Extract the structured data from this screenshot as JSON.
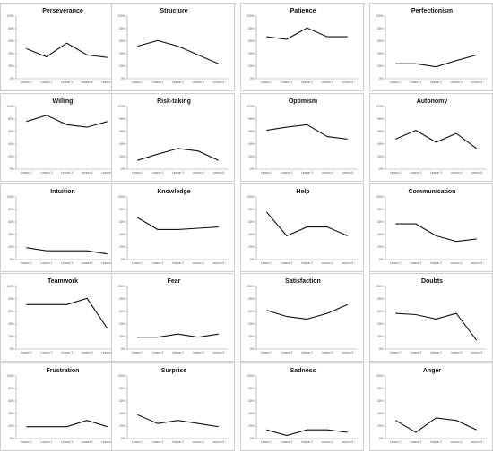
{
  "chart_data": [
    {
      "type": "line",
      "title": "Perseverance",
      "categories": [
        "Lesson 1",
        "Lesson 2",
        "Lesson 3",
        "Lesson 4",
        "Lesson 5"
      ],
      "values": [
        48,
        35,
        57,
        38,
        34
      ],
      "ylim": [
        0,
        100
      ],
      "yticks": [
        "100%",
        "80%",
        "60%",
        "40%",
        "20%",
        "0%"
      ],
      "grid": false
    },
    {
      "type": "line",
      "title": "Structure",
      "categories": [
        "Lesson 1",
        "Lesson 2",
        "Lesson 3",
        "Lesson 4",
        "Lesson 5"
      ],
      "values": [
        52,
        61,
        52,
        38,
        24
      ],
      "ylim": [
        0,
        100
      ],
      "yticks": [
        "100%",
        "80%",
        "60%",
        "40%",
        "20%",
        "0%"
      ],
      "grid": false
    },
    {
      "type": "line",
      "title": "Patience",
      "categories": [
        "Lesson 1",
        "Lesson 2",
        "Lesson 3",
        "Lesson 4",
        "Lesson 5"
      ],
      "values": [
        67,
        63,
        81,
        67,
        67
      ],
      "ylim": [
        0,
        100
      ],
      "yticks": [
        "100%",
        "80%",
        "60%",
        "40%",
        "20%",
        "0%"
      ],
      "grid": false
    },
    {
      "type": "line",
      "title": "Perfectionism",
      "categories": [
        "Lesson 1",
        "Lesson 2",
        "Lesson 3",
        "Lesson 4",
        "Lesson 5"
      ],
      "values": [
        24,
        24,
        19,
        29,
        38
      ],
      "ylim": [
        0,
        100
      ],
      "yticks": [
        "100%",
        "80%",
        "60%",
        "40%",
        "20%",
        "0%"
      ],
      "grid": false
    },
    {
      "type": "line",
      "title": "Willing",
      "categories": [
        "Lesson 1",
        "Lesson 2",
        "Lesson 3",
        "Lesson 4",
        "Lesson 5"
      ],
      "values": [
        76,
        86,
        71,
        67,
        76
      ],
      "ylim": [
        0,
        100
      ],
      "yticks": [
        "100%",
        "80%",
        "60%",
        "40%",
        "20%",
        "0%"
      ],
      "grid": false
    },
    {
      "type": "line",
      "title": "Risk-taking",
      "categories": [
        "Lesson 1",
        "Lesson 2",
        "Lesson 3",
        "Lesson 4",
        "Lesson 5"
      ],
      "values": [
        14,
        24,
        33,
        29,
        14
      ],
      "ylim": [
        0,
        100
      ],
      "yticks": [
        "100%",
        "80%",
        "60%",
        "40%",
        "20%",
        "0%"
      ],
      "grid": false
    },
    {
      "type": "line",
      "title": "Optimism",
      "categories": [
        "Lesson 1",
        "Lesson 2",
        "Lesson 3",
        "Lesson 4",
        "Lesson 5"
      ],
      "values": [
        62,
        67,
        71,
        52,
        48
      ],
      "ylim": [
        0,
        100
      ],
      "yticks": [
        "100%",
        "80%",
        "60%",
        "40%",
        "20%",
        "0%"
      ],
      "grid": false
    },
    {
      "type": "line",
      "title": "Autonomy",
      "categories": [
        "Lesson 1",
        "Lesson 2",
        "Lesson 3",
        "Lesson 4",
        "Lesson 5"
      ],
      "values": [
        48,
        62,
        43,
        57,
        33
      ],
      "ylim": [
        0,
        100
      ],
      "yticks": [
        "100%",
        "80%",
        "60%",
        "40%",
        "20%",
        "0%"
      ],
      "grid": false
    },
    {
      "type": "line",
      "title": "Intuition",
      "categories": [
        "Lesson 1",
        "Lesson 2",
        "Lesson 3",
        "Lesson 4",
        "Lesson 5"
      ],
      "values": [
        19,
        14,
        14,
        14,
        9
      ],
      "ylim": [
        0,
        100
      ],
      "yticks": [
        "100%",
        "80%",
        "60%",
        "40%",
        "20%",
        "0%"
      ],
      "grid": false
    },
    {
      "type": "line",
      "title": "Knowledge",
      "categories": [
        "Lesson 1",
        "Lesson 2",
        "Lesson 3",
        "Lesson 4",
        "Lesson 5"
      ],
      "values": [
        67,
        48,
        48,
        50,
        52
      ],
      "ylim": [
        0,
        100
      ],
      "yticks": [
        "100%",
        "80%",
        "60%",
        "40%",
        "20%",
        "0%"
      ],
      "grid": false
    },
    {
      "type": "line",
      "title": "Help",
      "categories": [
        "Lesson 1",
        "Lesson 2",
        "Lesson 3",
        "Lesson 4",
        "Lesson 5"
      ],
      "values": [
        76,
        38,
        52,
        52,
        38
      ],
      "ylim": [
        0,
        100
      ],
      "yticks": [
        "100%",
        "80%",
        "60%",
        "40%",
        "20%",
        "0%"
      ],
      "grid": false
    },
    {
      "type": "line",
      "title": "Communication",
      "categories": [
        "Lesson 1",
        "Lesson 2",
        "Lesson 3",
        "Lesson 4",
        "Lesson 5"
      ],
      "values": [
        57,
        57,
        38,
        29,
        33
      ],
      "ylim": [
        0,
        100
      ],
      "yticks": [
        "100%",
        "80%",
        "60%",
        "40%",
        "20%",
        "0%"
      ],
      "grid": false
    },
    {
      "type": "line",
      "title": "Teamwork",
      "categories": [
        "Lesson 1",
        "Lesson 2",
        "Lesson 3",
        "Lesson 4",
        "Lesson 5"
      ],
      "values": [
        71,
        71,
        71,
        81,
        33
      ],
      "ylim": [
        0,
        100
      ],
      "yticks": [
        "100%",
        "80%",
        "60%",
        "40%",
        "20%",
        "0%"
      ],
      "grid": false
    },
    {
      "type": "line",
      "title": "Fear",
      "categories": [
        "Lesson 1",
        "Lesson 2",
        "Lesson 3",
        "Lesson 4",
        "Lesson 5"
      ],
      "values": [
        19,
        19,
        24,
        19,
        24
      ],
      "ylim": [
        0,
        100
      ],
      "yticks": [
        "100%",
        "80%",
        "60%",
        "40%",
        "20%",
        "0%"
      ],
      "grid": false
    },
    {
      "type": "line",
      "title": "Satisfaction",
      "categories": [
        "Lesson 1",
        "Lesson 2",
        "Lesson 3",
        "Lesson 4",
        "Lesson 5"
      ],
      "values": [
        62,
        52,
        48,
        57,
        71
      ],
      "ylim": [
        0,
        100
      ],
      "yticks": [
        "100%",
        "80%",
        "60%",
        "40%",
        "20%",
        "0%"
      ],
      "grid": false
    },
    {
      "type": "line",
      "title": "Doubts",
      "categories": [
        "Lesson 1",
        "Lesson 2",
        "Lesson 3",
        "Lesson 4",
        "Lesson 5"
      ],
      "values": [
        57,
        55,
        48,
        57,
        14
      ],
      "ylim": [
        0,
        100
      ],
      "yticks": [
        "100%",
        "80%",
        "60%",
        "40%",
        "20%",
        "0%"
      ],
      "grid": false
    },
    {
      "type": "line",
      "title": "Frustration",
      "categories": [
        "Lesson 1",
        "Lesson 2",
        "Lesson 3",
        "Lesson 4",
        "Lesson 5"
      ],
      "values": [
        19,
        19,
        19,
        29,
        19
      ],
      "ylim": [
        0,
        100
      ],
      "yticks": [
        "100%",
        "80%",
        "60%",
        "40%",
        "20%",
        "0%"
      ],
      "grid": false
    },
    {
      "type": "line",
      "title": "Surprise",
      "categories": [
        "Lesson 1",
        "Lesson 2",
        "Lesson 3",
        "Lesson 4",
        "Lesson 5"
      ],
      "values": [
        38,
        24,
        29,
        24,
        19
      ],
      "ylim": [
        0,
        100
      ],
      "yticks": [
        "100%",
        "80%",
        "60%",
        "40%",
        "20%",
        "0%"
      ],
      "grid": false
    },
    {
      "type": "line",
      "title": "Sadness",
      "categories": [
        "Lesson 1",
        "Lesson 2",
        "Lesson 3",
        "Lesson 4",
        "Lesson 5"
      ],
      "values": [
        14,
        5,
        14,
        14,
        10
      ],
      "ylim": [
        0,
        100
      ],
      "yticks": [
        "100%",
        "80%",
        "60%",
        "40%",
        "20%",
        "0%"
      ],
      "grid": false
    },
    {
      "type": "line",
      "title": "Anger",
      "categories": [
        "Lesson 1",
        "Lesson 2",
        "Lesson 3",
        "Lesson 4",
        "Lesson 5"
      ],
      "values": [
        29,
        10,
        33,
        29,
        14
      ],
      "ylim": [
        0,
        100
      ],
      "yticks": [
        "100%",
        "80%",
        "60%",
        "40%",
        "20%",
        "0%"
      ],
      "grid": false
    }
  ]
}
